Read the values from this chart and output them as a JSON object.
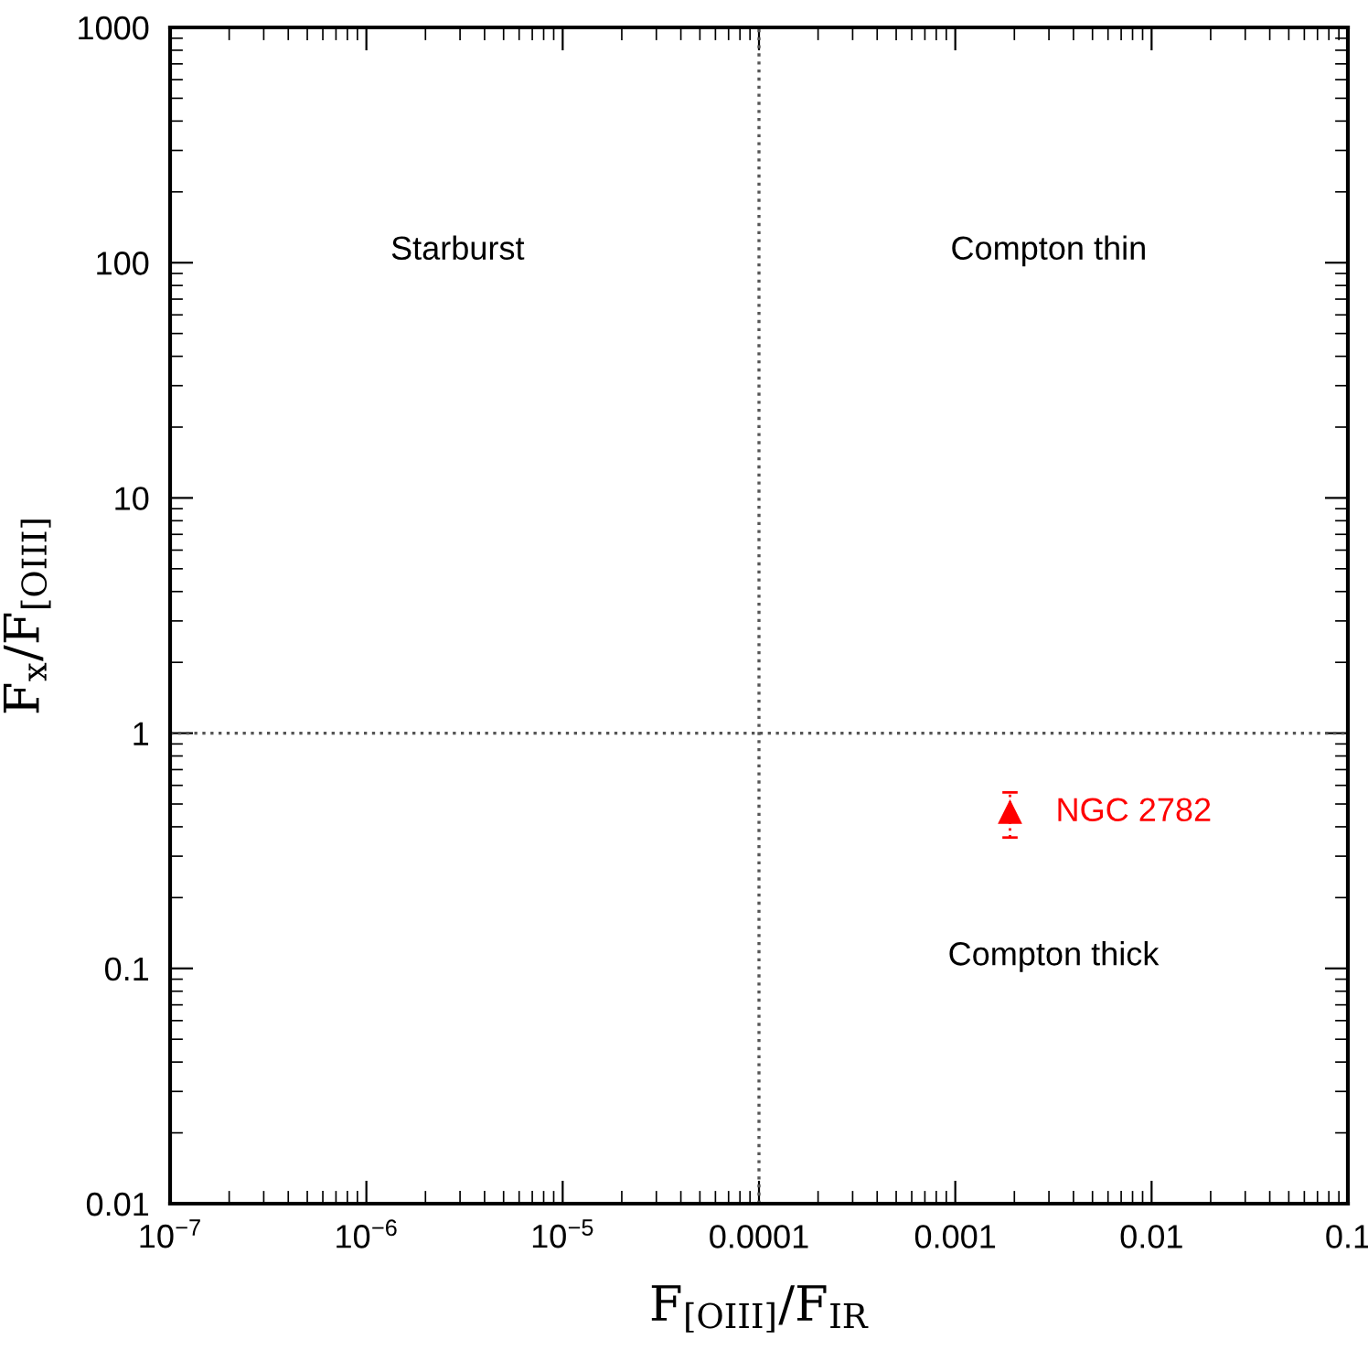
{
  "chart_data": {
    "type": "scatter",
    "xlabel": "F$_{[OIII]}$/F$_{IR}$",
    "ylabel": "F$_{x}$/F$_{[OIII]}$",
    "log": "xy",
    "xlim": [
      1e-07,
      0.1
    ],
    "ylim": [
      0.01,
      1000
    ],
    "xticks": [
      {
        "value": 1e-07,
        "label": "10$^{−7}$"
      },
      {
        "value": 1e-06,
        "label": "10$^{−6}$"
      },
      {
        "value": 1e-05,
        "label": "10$^{−5}$"
      },
      {
        "value": 0.0001,
        "label": "0.0001"
      },
      {
        "value": 0.001,
        "label": "0.001"
      },
      {
        "value": 0.01,
        "label": "0.01"
      },
      {
        "value": 0.1,
        "label": "0.1"
      }
    ],
    "yticks": [
      0.01,
      0.1,
      1,
      10,
      100,
      1000
    ],
    "grid": false,
    "legend": false,
    "marker": "triangle",
    "series": [
      {
        "name": "NGC 2782",
        "color": "#ff0000",
        "x": [
          0.0019
        ],
        "values": [
          0.46
        ],
        "errors": [
          0.1
        ]
      }
    ],
    "ref_lines": [
      {
        "axis": "x",
        "value": 0.0001,
        "line_style": "dotted",
        "color": "#555555"
      },
      {
        "axis": "y",
        "value": 1,
        "line_style": "dotted",
        "color": "#555555"
      }
    ],
    "annotations": [
      "Starburst",
      "Compton thin",
      "Compton thick"
    ]
  }
}
